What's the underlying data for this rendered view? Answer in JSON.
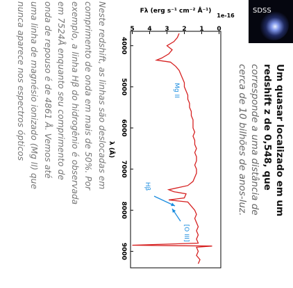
{
  "image_label": "SDSS",
  "caption": {
    "lines": [
      "Um quasar localizado em um",
      "redshift z de 0,548, que",
      "corresponde a uma distância de",
      "cerca de 10 bilhões de anos-luz."
    ]
  },
  "paragraph": {
    "lines": [
      "Neste redshift, as linhas são deslocadas em",
      "comprimento de onda em mais de 50%. Por",
      "exemplo, a linha Hβ do hidrogênio é observada",
      "em 7524Å enquanto seu comprimento de",
      "onda de repouso é de 4861 Å. Vemos até",
      "uma linha de magnésio ionizado (Mg II) que",
      "nunca aparece nos espectros ópticos"
    ]
  },
  "chart_data": {
    "type": "line",
    "xlabel": "λ (Å)",
    "ylabel": "Fλ (erg s⁻¹ cm⁻² Å⁻¹)",
    "offset_text": "1e-16",
    "x": [
      3700,
      3800,
      3900,
      4000,
      4100,
      4200,
      4300,
      4350,
      4400,
      4500,
      4600,
      4700,
      4800,
      4900,
      5000,
      5100,
      5200,
      5300,
      5400,
      5500,
      5600,
      5700,
      5800,
      5900,
      6000,
      6100,
      6200,
      6300,
      6400,
      6500,
      6600,
      6700,
      6800,
      6900,
      7000,
      7100,
      7200,
      7300,
      7400,
      7500,
      7550,
      7600,
      7700,
      7750,
      7800,
      7900,
      8000,
      8100,
      8200,
      8300,
      8400,
      8500,
      8600,
      8700,
      8800,
      8850,
      8870,
      8900,
      9000,
      9100,
      9200,
      9300
    ],
    "values": [
      2.3,
      2.4,
      2.6,
      3.0,
      2.7,
      2.9,
      3.3,
      3.6,
      2.8,
      2.5,
      2.3,
      2.2,
      2.1,
      2.0,
      2.0,
      1.9,
      1.8,
      1.8,
      1.7,
      1.7,
      1.6,
      1.6,
      1.5,
      1.5,
      1.5,
      1.4,
      1.5,
      1.4,
      1.4,
      1.3,
      1.4,
      1.3,
      1.3,
      1.4,
      1.3,
      1.3,
      1.4,
      1.5,
      1.8,
      2.9,
      2.6,
      1.9,
      2.0,
      2.9,
      1.8,
      1.6,
      1.4,
      1.3,
      1.4,
      1.3,
      1.2,
      1.3,
      1.2,
      1.3,
      1.2,
      5.0,
      0.4,
      1.3,
      1.2,
      1.3,
      1.1,
      1.2
    ],
    "color": "#d62020",
    "xlim": [
      3650,
      9400
    ],
    "xticks": [
      4000,
      5000,
      6000,
      7000,
      8000,
      9000
    ],
    "ylim": [
      -0.1,
      5.1
    ],
    "yticks": [
      0,
      1,
      2,
      3,
      4,
      5
    ],
    "annotations": [
      {
        "text": "Mg II"
      },
      {
        "text": "Hβ"
      },
      {
        "text": "[O III]"
      }
    ],
    "annotation_color": "#1a8cdf"
  }
}
